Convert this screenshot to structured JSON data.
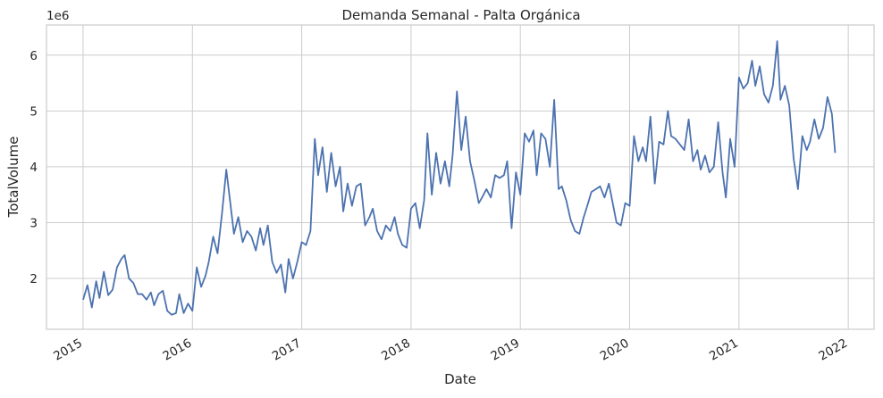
{
  "chart_data": {
    "type": "line",
    "title": "Demanda Semanal - Palta Orgánica",
    "x_label": "Date",
    "y_label": "TotalVolume",
    "y_offset_label": "1e6",
    "x": [
      2015.0,
      2015.04,
      2015.08,
      2015.12,
      2015.15,
      2015.19,
      2015.23,
      2015.27,
      2015.31,
      2015.35,
      2015.38,
      2015.42,
      2015.46,
      2015.5,
      2015.54,
      2015.58,
      2015.62,
      2015.65,
      2015.69,
      2015.73,
      2015.77,
      2015.81,
      2015.85,
      2015.88,
      2015.92,
      2015.96,
      2016.0,
      2016.04,
      2016.08,
      2016.12,
      2016.15,
      2016.19,
      2016.23,
      2016.27,
      2016.31,
      2016.35,
      2016.38,
      2016.42,
      2016.46,
      2016.5,
      2016.54,
      2016.58,
      2016.62,
      2016.65,
      2016.69,
      2016.73,
      2016.77,
      2016.81,
      2016.85,
      2016.88,
      2016.92,
      2016.96,
      2017.0,
      2017.04,
      2017.08,
      2017.12,
      2017.15,
      2017.19,
      2017.23,
      2017.27,
      2017.31,
      2017.35,
      2017.38,
      2017.42,
      2017.46,
      2017.5,
      2017.54,
      2017.58,
      2017.62,
      2017.65,
      2017.69,
      2017.73,
      2017.77,
      2017.81,
      2017.85,
      2017.88,
      2017.92,
      2017.96,
      2018.0,
      2018.04,
      2018.08,
      2018.12,
      2018.15,
      2018.19,
      2018.23,
      2018.27,
      2018.31,
      2018.35,
      2018.38,
      2018.42,
      2018.46,
      2018.5,
      2018.54,
      2018.58,
      2018.62,
      2018.65,
      2018.69,
      2018.73,
      2018.77,
      2018.81,
      2018.85,
      2018.88,
      2018.92,
      2018.96,
      2019.0,
      2019.04,
      2019.08,
      2019.12,
      2019.15,
      2019.19,
      2019.23,
      2019.27,
      2019.31,
      2019.35,
      2019.38,
      2019.42,
      2019.46,
      2019.5,
      2019.54,
      2019.58,
      2019.62,
      2019.65,
      2019.69,
      2019.73,
      2019.77,
      2019.81,
      2019.85,
      2019.88,
      2019.92,
      2019.96,
      2020.0,
      2020.04,
      2020.08,
      2020.12,
      2020.15,
      2020.19,
      2020.23,
      2020.27,
      2020.31,
      2020.35,
      2020.38,
      2020.42,
      2020.46,
      2020.5,
      2020.54,
      2020.58,
      2020.62,
      2020.65,
      2020.69,
      2020.73,
      2020.77,
      2020.81,
      2020.85,
      2020.88,
      2020.92,
      2020.96,
      2021.0,
      2021.04,
      2021.08,
      2021.12,
      2021.15,
      2021.19,
      2021.23,
      2021.27,
      2021.31,
      2021.35,
      2021.38,
      2021.42,
      2021.46,
      2021.5,
      2021.54,
      2021.58,
      2021.62,
      2021.65,
      2021.69,
      2021.73,
      2021.77,
      2021.81,
      2021.85,
      2021.88
    ],
    "series": [
      {
        "name": "TotalVolume",
        "color": "#4c72b0",
        "values": [
          1.62,
          1.88,
          1.48,
          1.95,
          1.65,
          2.12,
          1.7,
          1.8,
          2.2,
          2.35,
          2.42,
          2.0,
          1.92,
          1.72,
          1.72,
          1.62,
          1.75,
          1.52,
          1.72,
          1.78,
          1.42,
          1.35,
          1.38,
          1.72,
          1.38,
          1.55,
          1.42,
          2.2,
          1.85,
          2.05,
          2.3,
          2.75,
          2.45,
          3.15,
          3.95,
          3.3,
          2.8,
          3.1,
          2.65,
          2.85,
          2.75,
          2.5,
          2.9,
          2.6,
          2.95,
          2.3,
          2.1,
          2.25,
          1.75,
          2.35,
          2.0,
          2.3,
          2.65,
          2.6,
          2.85,
          4.5,
          3.85,
          4.35,
          3.55,
          4.25,
          3.65,
          4.0,
          3.2,
          3.7,
          3.3,
          3.65,
          3.7,
          2.95,
          3.1,
          3.25,
          2.85,
          2.7,
          2.95,
          2.85,
          3.1,
          2.8,
          2.6,
          2.55,
          3.25,
          3.35,
          2.9,
          3.4,
          4.6,
          3.5,
          4.25,
          3.7,
          4.1,
          3.65,
          4.2,
          5.35,
          4.3,
          4.9,
          4.1,
          3.75,
          3.35,
          3.45,
          3.6,
          3.45,
          3.85,
          3.8,
          3.85,
          4.1,
          2.9,
          3.9,
          3.5,
          4.6,
          4.45,
          4.65,
          3.85,
          4.6,
          4.5,
          4.0,
          5.2,
          3.6,
          3.65,
          3.4,
          3.05,
          2.85,
          2.8,
          3.1,
          3.35,
          3.55,
          3.6,
          3.65,
          3.45,
          3.7,
          3.3,
          3.0,
          2.95,
          3.35,
          3.3,
          4.55,
          4.1,
          4.35,
          4.1,
          4.9,
          3.7,
          4.45,
          4.4,
          5.0,
          4.55,
          4.5,
          4.4,
          4.3,
          4.85,
          4.1,
          4.3,
          3.95,
          4.2,
          3.9,
          4.0,
          4.8,
          3.9,
          3.45,
          4.5,
          4.0,
          5.6,
          5.4,
          5.5,
          5.9,
          5.45,
          5.8,
          5.3,
          5.15,
          5.45,
          6.25,
          5.2,
          5.45,
          5.1,
          4.15,
          3.6,
          4.55,
          4.3,
          4.45,
          4.85,
          4.5,
          4.7,
          5.25,
          4.95,
          4.25
        ]
      }
    ],
    "xlim": [
      2014.665,
      2022.236
    ],
    "xticks": [
      2015,
      2016,
      2017,
      2018,
      2019,
      2020,
      2021,
      2022
    ],
    "ylim": [
      1.09,
      6.54
    ],
    "yticks": [
      2,
      3,
      4,
      5,
      6
    ],
    "grid": true
  }
}
